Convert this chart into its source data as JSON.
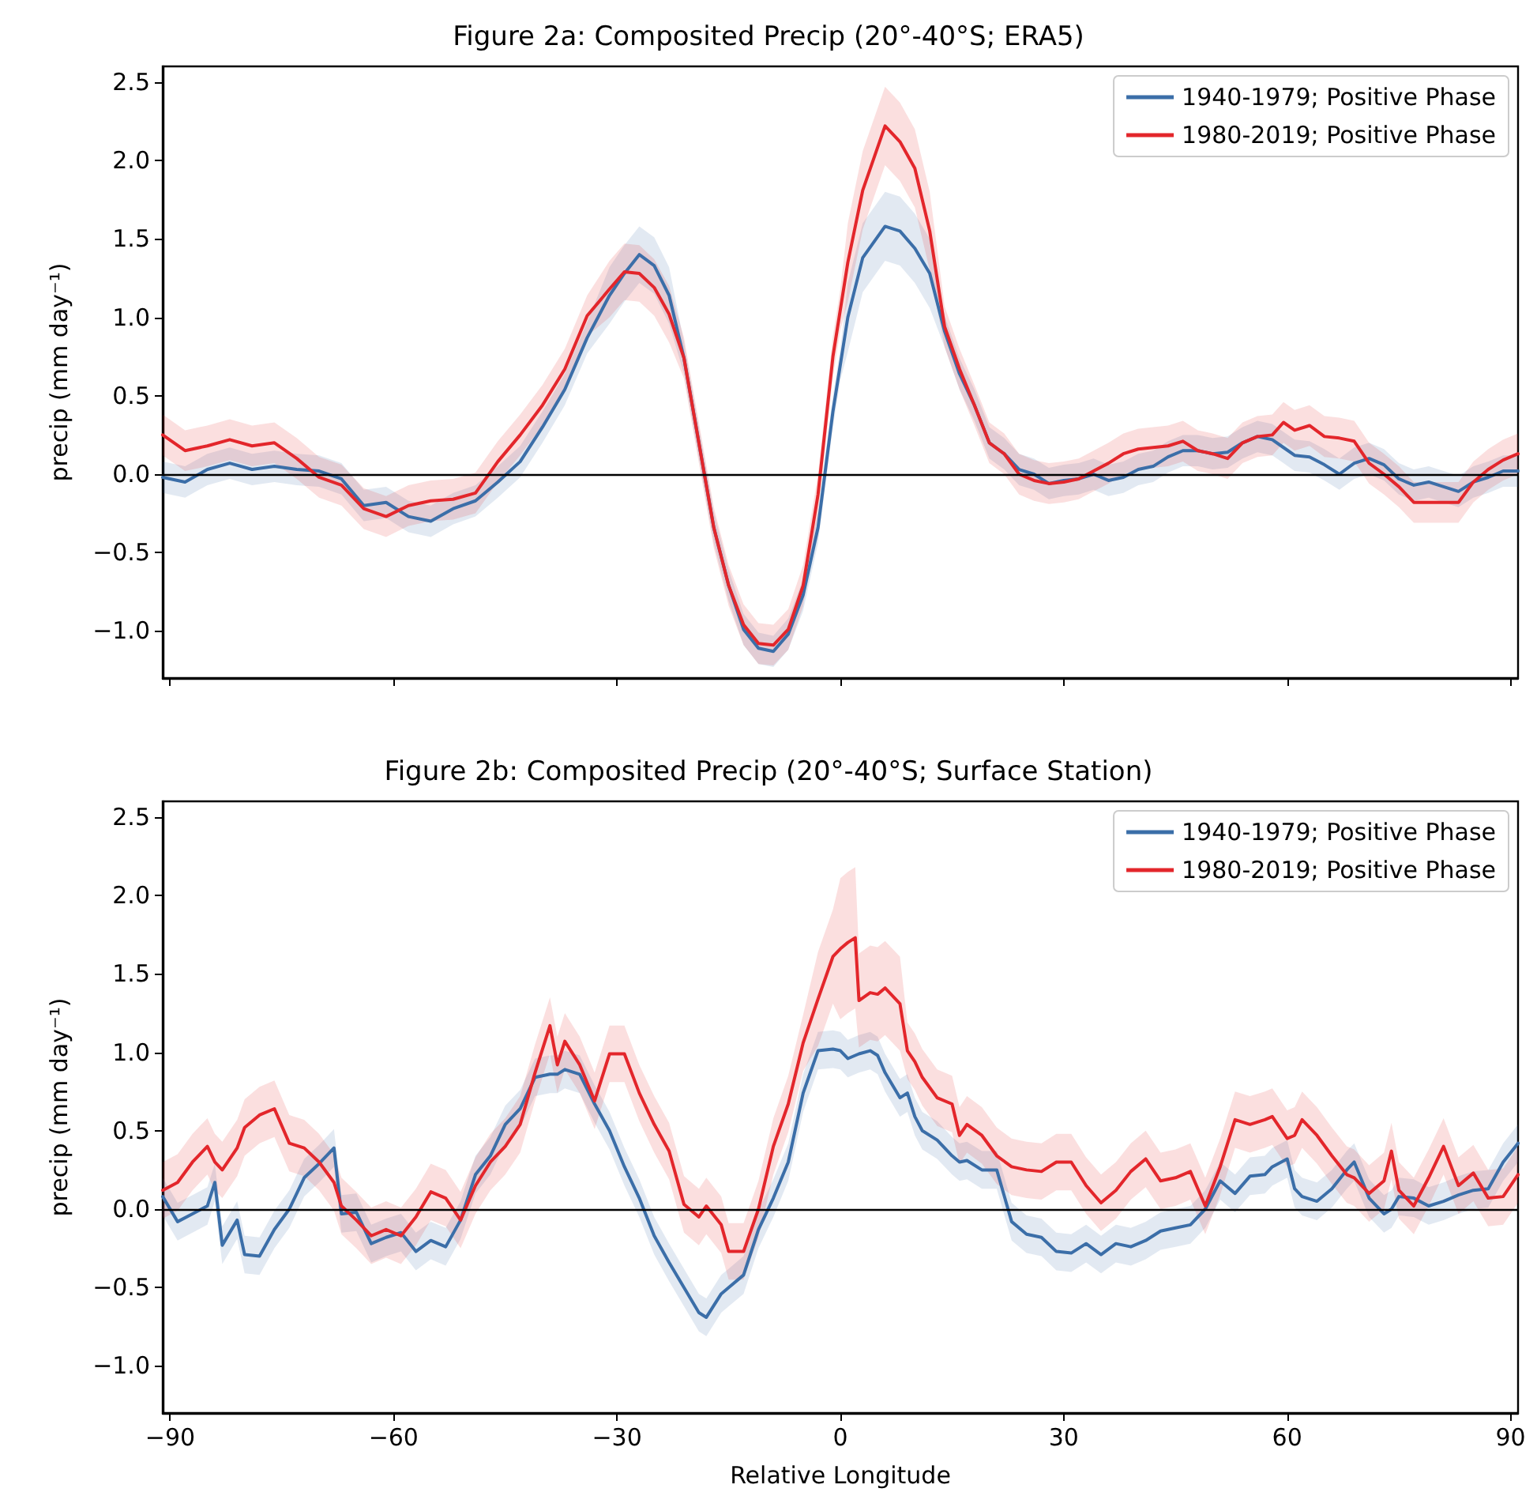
{
  "chart_data": [
    {
      "type": "line",
      "title": "Figure 2a: Composited Precip (20°-40°S; ERA5)",
      "ylabel": "precip (mm day⁻¹)",
      "xlim": [
        -91,
        91
      ],
      "xticks": [
        {
          "value": -90,
          "label": null
        },
        {
          "value": -60,
          "label": null
        },
        {
          "value": -30,
          "label": null
        },
        {
          "value": 0,
          "label": null
        },
        {
          "value": 30,
          "label": null
        },
        {
          "value": 60,
          "label": null
        },
        {
          "value": 90,
          "label": null
        }
      ],
      "ylim": [
        -1.3,
        2.6
      ],
      "yticks": [
        {
          "value": -1,
          "label": "−1.0"
        },
        {
          "value": -0.5,
          "label": "−0.5"
        },
        {
          "value": 0,
          "label": "0.0"
        },
        {
          "value": 0.5,
          "label": "0.5"
        },
        {
          "value": 1,
          "label": "1.0"
        },
        {
          "value": 1.5,
          "label": "1.5"
        },
        {
          "value": 2,
          "label": "2.0"
        },
        {
          "value": 2.5,
          "label": "2.5"
        }
      ],
      "tick_labels": "y",
      "legend": "top right",
      "grid": false,
      "marker": "none",
      "line_style": "solid",
      "ref_lines": [
        {
          "axis": "y",
          "value": 0,
          "color": "#000000"
        }
      ],
      "x": [
        -91,
        -88,
        -85,
        -82,
        -79,
        -76,
        -73,
        -70,
        -67,
        -64,
        -61,
        -58,
        -55,
        -52,
        -49,
        -46,
        -43,
        -40,
        -37,
        -34,
        -31,
        -29,
        -27,
        -25,
        -23,
        -21,
        -19,
        -17,
        -15,
        -13,
        -11,
        -9,
        -7,
        -5,
        -3,
        -1,
        0,
        1,
        3,
        6,
        8,
        10,
        12,
        14,
        16,
        18,
        20,
        22,
        24,
        26,
        28,
        30,
        32,
        34,
        36,
        38,
        40,
        42,
        44,
        46,
        48,
        50,
        52,
        54,
        56,
        58,
        59.5,
        61,
        63,
        65,
        67,
        69,
        71,
        73,
        75,
        77,
        79,
        81,
        83,
        85,
        87,
        89,
        91
      ],
      "series": [
        {
          "name": "1940-1979; Positive Phase",
          "color": "#3b6ea8",
          "values": [
            -0.02,
            -0.05,
            0.03,
            0.07,
            0.03,
            0.05,
            0.03,
            0.02,
            -0.03,
            -0.2,
            -0.18,
            -0.27,
            -0.3,
            -0.22,
            -0.17,
            -0.05,
            0.08,
            0.3,
            0.54,
            0.87,
            1.14,
            1.28,
            1.4,
            1.33,
            1.14,
            0.74,
            0.2,
            -0.34,
            -0.71,
            -0.99,
            -1.11,
            -1.13,
            -1.02,
            -0.77,
            -0.34,
            0.4,
            0.7,
            1.0,
            1.38,
            1.58,
            1.55,
            1.44,
            1.28,
            0.91,
            0.64,
            0.44,
            0.2,
            0.13,
            0.03,
            0,
            -0.06,
            -0.04,
            -0.03,
            0,
            -0.04,
            -0.02,
            0.03,
            0.05,
            0.11,
            0.15,
            0.15,
            0.13,
            0.14,
            0.2,
            0.24,
            0.22,
            0.17,
            0.12,
            0.11,
            0.06,
            0,
            0.07,
            0.1,
            0.06,
            -0.03,
            -0.07,
            -0.05,
            -0.08,
            -0.11,
            -0.05,
            -0.02,
            0.02,
            0.02
          ],
          "lower": [
            -0.12,
            -0.15,
            -0.07,
            -0.03,
            -0.07,
            -0.05,
            -0.07,
            -0.08,
            -0.13,
            -0.3,
            -0.28,
            -0.37,
            -0.4,
            -0.32,
            -0.27,
            -0.15,
            -0.02,
            0.2,
            0.44,
            0.77,
            0.96,
            1.1,
            1.22,
            1.15,
            0.96,
            0.64,
            0.1,
            -0.44,
            -0.81,
            -1.09,
            -1.21,
            -1.23,
            -1.12,
            -0.87,
            -0.44,
            0.3,
            0.6,
            0.78,
            1.16,
            1.36,
            1.33,
            1.22,
            1.06,
            0.81,
            0.54,
            0.34,
            0.1,
            0.03,
            -0.07,
            -0.1,
            -0.16,
            -0.14,
            -0.13,
            -0.1,
            -0.14,
            -0.12,
            -0.07,
            -0.05,
            0.01,
            0.05,
            0.05,
            0.03,
            0.04,
            0.1,
            0.14,
            0.12,
            0.07,
            0.02,
            0.01,
            -0.04,
            -0.1,
            -0.03,
            0,
            -0.04,
            -0.13,
            -0.17,
            -0.15,
            -0.18,
            -0.21,
            -0.15,
            -0.12,
            -0.08,
            -0.08
          ],
          "upper": [
            0.08,
            0.05,
            0.13,
            0.17,
            0.13,
            0.15,
            0.13,
            0.12,
            0.07,
            -0.1,
            -0.08,
            -0.17,
            -0.2,
            -0.12,
            -0.07,
            0.05,
            0.18,
            0.4,
            0.64,
            0.97,
            1.32,
            1.46,
            1.58,
            1.51,
            1.32,
            0.84,
            0.3,
            -0.24,
            -0.61,
            -0.89,
            -1.01,
            -1.03,
            -0.92,
            -0.67,
            -0.24,
            0.5,
            0.8,
            1.22,
            1.6,
            1.8,
            1.77,
            1.66,
            1.5,
            1.01,
            0.74,
            0.54,
            0.3,
            0.23,
            0.13,
            0.1,
            0.04,
            0.06,
            0.07,
            0.1,
            0.06,
            0.08,
            0.13,
            0.15,
            0.21,
            0.25,
            0.25,
            0.23,
            0.24,
            0.3,
            0.34,
            0.32,
            0.27,
            0.22,
            0.21,
            0.16,
            0.1,
            0.17,
            0.2,
            0.16,
            0.07,
            0.03,
            0.05,
            0.02,
            -0.01,
            0.05,
            0.08,
            0.12,
            0.12
          ]
        },
        {
          "name": "1980-2019; Positive Phase",
          "color": "#e3262b",
          "values": [
            0.25,
            0.15,
            0.18,
            0.22,
            0.18,
            0.2,
            0.1,
            -0.02,
            -0.07,
            -0.22,
            -0.27,
            -0.2,
            -0.17,
            -0.16,
            -0.12,
            0.08,
            0.25,
            0.44,
            0.67,
            1.01,
            1.18,
            1.29,
            1.28,
            1.19,
            1.02,
            0.74,
            0.2,
            -0.34,
            -0.71,
            -0.96,
            -1.08,
            -1.09,
            -0.99,
            -0.71,
            -0.13,
            0.75,
            1.05,
            1.35,
            1.81,
            2.22,
            2.12,
            1.95,
            1.55,
            0.94,
            0.67,
            0.44,
            0.2,
            0.13,
            0,
            -0.04,
            -0.06,
            -0.05,
            -0.03,
            0.02,
            0.07,
            0.13,
            0.16,
            0.17,
            0.18,
            0.21,
            0.15,
            0.13,
            0.1,
            0.2,
            0.24,
            0.25,
            0.33,
            0.28,
            0.31,
            0.24,
            0.23,
            0.21,
            0.07,
            0,
            -0.08,
            -0.18,
            -0.18,
            -0.18,
            -0.18,
            -0.05,
            0.03,
            0.09,
            0.13
          ],
          "lower": [
            0.12,
            0.02,
            0.05,
            0.09,
            0.05,
            0.07,
            -0.03,
            -0.15,
            -0.2,
            -0.35,
            -0.4,
            -0.33,
            -0.3,
            -0.29,
            -0.25,
            -0.05,
            0.12,
            0.31,
            0.54,
            0.88,
            1.0,
            1.11,
            1.1,
            1.01,
            0.84,
            0.61,
            0.07,
            -0.47,
            -0.84,
            -1.09,
            -1.21,
            -1.22,
            -1.12,
            -0.84,
            -0.26,
            0.62,
            0.92,
            1.1,
            1.56,
            1.97,
            1.87,
            1.7,
            1.3,
            0.81,
            0.54,
            0.31,
            0.07,
            0,
            -0.13,
            -0.17,
            -0.19,
            -0.18,
            -0.16,
            -0.11,
            -0.06,
            0,
            0.03,
            0.04,
            0.05,
            0.08,
            0.02,
            0,
            -0.03,
            0.07,
            0.11,
            0.12,
            0.2,
            0.15,
            0.18,
            0.11,
            0.1,
            0.08,
            -0.06,
            -0.13,
            -0.21,
            -0.31,
            -0.31,
            -0.31,
            -0.31,
            -0.18,
            -0.1,
            -0.04,
            0
          ],
          "upper": [
            0.38,
            0.28,
            0.31,
            0.35,
            0.31,
            0.33,
            0.23,
            0.11,
            0.06,
            -0.09,
            -0.14,
            -0.07,
            -0.04,
            -0.03,
            0.01,
            0.21,
            0.38,
            0.57,
            0.8,
            1.14,
            1.36,
            1.47,
            1.46,
            1.37,
            1.2,
            0.87,
            0.33,
            -0.21,
            -0.58,
            -0.83,
            -0.95,
            -0.96,
            -0.86,
            -0.58,
            0,
            0.88,
            1.18,
            1.6,
            2.06,
            2.47,
            2.37,
            2.2,
            1.8,
            1.07,
            0.8,
            0.57,
            0.33,
            0.26,
            0.13,
            0.09,
            0.07,
            0.08,
            0.1,
            0.15,
            0.2,
            0.26,
            0.29,
            0.3,
            0.31,
            0.34,
            0.28,
            0.26,
            0.23,
            0.33,
            0.37,
            0.38,
            0.46,
            0.41,
            0.44,
            0.37,
            0.36,
            0.34,
            0.2,
            0.13,
            0.05,
            -0.05,
            -0.05,
            -0.05,
            -0.05,
            0.08,
            0.16,
            0.22,
            0.26
          ]
        }
      ]
    },
    {
      "type": "line",
      "title": "Figure 2b: Composited Precip (20°-40°S; Surface Station)",
      "xlabel": "Relative Longitude",
      "ylabel": "precip (mm day⁻¹)",
      "xlim": [
        -91,
        91
      ],
      "xticks": [
        {
          "value": -90,
          "label": "−90"
        },
        {
          "value": -60,
          "label": "−60"
        },
        {
          "value": -30,
          "label": "−30"
        },
        {
          "value": 0,
          "label": "0"
        },
        {
          "value": 30,
          "label": "30"
        },
        {
          "value": 60,
          "label": "60"
        },
        {
          "value": 90,
          "label": "90"
        }
      ],
      "ylim": [
        -1.3,
        2.6
      ],
      "yticks": [
        {
          "value": -1,
          "label": "−1.0"
        },
        {
          "value": -0.5,
          "label": "−0.5"
        },
        {
          "value": 0,
          "label": "0.0"
        },
        {
          "value": 0.5,
          "label": "0.5"
        },
        {
          "value": 1,
          "label": "1.0"
        },
        {
          "value": 1.5,
          "label": "1.5"
        },
        {
          "value": 2,
          "label": "2.0"
        },
        {
          "value": 2.5,
          "label": "2.5"
        }
      ],
      "legend": "top right",
      "grid": false,
      "marker": "none",
      "line_style": "solid",
      "ref_lines": [
        {
          "axis": "y",
          "value": 0,
          "color": "#000000"
        }
      ],
      "x": [
        -91,
        -89,
        -87,
        -85,
        -84,
        -83,
        -81,
        -80,
        -78,
        -76,
        -74,
        -72,
        -70,
        -68,
        -67,
        -65,
        -63,
        -61,
        -59,
        -57,
        -55,
        -53,
        -51,
        -49,
        -47,
        -45,
        -43,
        -41,
        -39,
        -38,
        -37,
        -35,
        -33,
        -31,
        -29,
        -27,
        -25,
        -23,
        -21,
        -19,
        -18,
        -16,
        -15,
        -13,
        -11,
        -9,
        -7,
        -5,
        -3,
        -1,
        0,
        1,
        2,
        2.5,
        4,
        5,
        6,
        8,
        9,
        10,
        11,
        13,
        15,
        16,
        17,
        19,
        21,
        23,
        25,
        27,
        29,
        31,
        33,
        35,
        37,
        39,
        41,
        43,
        45,
        47,
        49,
        51,
        53,
        55,
        57,
        58,
        60,
        61,
        62,
        64,
        66,
        68,
        69,
        71,
        73,
        74,
        75,
        77,
        79,
        81,
        83,
        85,
        87,
        89,
        91
      ],
      "series": [
        {
          "name": "1940-1979; Positive Phase",
          "color": "#3b6ea8",
          "values": [
            0.08,
            -0.08,
            -0.03,
            0.02,
            0.17,
            -0.23,
            -0.07,
            -0.29,
            -0.3,
            -0.13,
            0,
            0.2,
            0.29,
            0.39,
            -0.03,
            -0.02,
            -0.22,
            -0.18,
            -0.15,
            -0.27,
            -0.2,
            -0.24,
            -0.07,
            0.22,
            0.34,
            0.54,
            0.64,
            0.84,
            0.86,
            0.86,
            0.89,
            0.86,
            0.67,
            0.5,
            0.27,
            0.07,
            -0.17,
            -0.34,
            -0.5,
            -0.66,
            -0.69,
            -0.54,
            -0.5,
            -0.42,
            -0.13,
            0.07,
            0.3,
            0.74,
            1.01,
            1.02,
            1.01,
            0.96,
            0.98,
            0.99,
            1.01,
            0.98,
            0.87,
            0.71,
            0.74,
            0.59,
            0.5,
            0.44,
            0.34,
            0.3,
            0.31,
            0.25,
            0.25,
            -0.08,
            -0.16,
            -0.18,
            -0.27,
            -0.28,
            -0.22,
            -0.29,
            -0.22,
            -0.24,
            -0.2,
            -0.14,
            -0.12,
            -0.1,
            0,
            0.18,
            0.1,
            0.21,
            0.22,
            0.27,
            0.32,
            0.13,
            0.08,
            0.05,
            0.13,
            0.25,
            0.3,
            0.07,
            -0.03,
            0,
            0.08,
            0.07,
            0.02,
            0.05,
            0.09,
            0.12,
            0.13,
            0.3,
            0.42
          ],
          "lower": [
            -0.04,
            -0.2,
            -0.15,
            -0.1,
            0.05,
            -0.35,
            -0.19,
            -0.41,
            -0.42,
            -0.25,
            -0.12,
            0.08,
            0.17,
            0.27,
            -0.15,
            -0.14,
            -0.34,
            -0.3,
            -0.27,
            -0.39,
            -0.32,
            -0.36,
            -0.19,
            0.1,
            0.22,
            0.42,
            0.52,
            0.72,
            0.74,
            0.74,
            0.77,
            0.74,
            0.55,
            0.38,
            0.15,
            -0.05,
            -0.29,
            -0.46,
            -0.62,
            -0.78,
            -0.81,
            -0.66,
            -0.62,
            -0.54,
            -0.25,
            -0.05,
            0.18,
            0.62,
            0.89,
            0.9,
            0.89,
            0.84,
            0.86,
            0.87,
            0.89,
            0.86,
            0.75,
            0.59,
            0.62,
            0.47,
            0.38,
            0.32,
            0.22,
            0.18,
            0.19,
            0.13,
            0.13,
            -0.2,
            -0.28,
            -0.3,
            -0.39,
            -0.4,
            -0.34,
            -0.41,
            -0.34,
            -0.36,
            -0.32,
            -0.26,
            -0.24,
            -0.22,
            -0.12,
            0.06,
            -0.02,
            0.09,
            0.1,
            0.15,
            0.2,
            0.01,
            -0.04,
            -0.07,
            0.01,
            0.13,
            0.18,
            -0.05,
            -0.15,
            -0.12,
            -0.04,
            -0.05,
            -0.1,
            -0.07,
            -0.03,
            0,
            0.01,
            0.18,
            0.3
          ],
          "upper": [
            0.2,
            0.04,
            0.09,
            0.14,
            0.29,
            -0.11,
            0.05,
            -0.17,
            -0.18,
            -0.01,
            0.12,
            0.32,
            0.41,
            0.51,
            0.09,
            0.1,
            -0.1,
            -0.06,
            -0.03,
            -0.15,
            -0.08,
            -0.12,
            0.05,
            0.34,
            0.46,
            0.66,
            0.76,
            0.96,
            0.98,
            0.98,
            1.01,
            0.98,
            0.79,
            0.62,
            0.39,
            0.19,
            -0.05,
            -0.22,
            -0.38,
            -0.54,
            -0.57,
            -0.42,
            -0.38,
            -0.3,
            -0.01,
            0.19,
            0.42,
            0.86,
            1.13,
            1.14,
            1.13,
            1.08,
            1.1,
            1.11,
            1.13,
            1.1,
            0.99,
            0.83,
            0.86,
            0.71,
            0.62,
            0.56,
            0.46,
            0.42,
            0.43,
            0.37,
            0.37,
            0.04,
            -0.04,
            -0.06,
            -0.15,
            -0.16,
            -0.1,
            -0.17,
            -0.1,
            -0.12,
            -0.08,
            -0.02,
            0,
            0.02,
            0.12,
            0.3,
            0.22,
            0.33,
            0.34,
            0.39,
            0.44,
            0.25,
            0.2,
            0.17,
            0.25,
            0.37,
            0.42,
            0.19,
            0.09,
            0.12,
            0.2,
            0.19,
            0.14,
            0.17,
            0.21,
            0.24,
            0.25,
            0.42,
            0.54
          ]
        },
        {
          "name": "1980-2019; Positive Phase",
          "color": "#e3262b",
          "values": [
            0.12,
            0.17,
            0.3,
            0.4,
            0.3,
            0.25,
            0.39,
            0.52,
            0.6,
            0.64,
            0.42,
            0.39,
            0.3,
            0.17,
            0.02,
            -0.07,
            -0.17,
            -0.13,
            -0.17,
            -0.05,
            0.11,
            0.07,
            -0.07,
            0.15,
            0.3,
            0.4,
            0.54,
            0.87,
            1.17,
            0.92,
            1.07,
            0.92,
            0.69,
            0.99,
            0.99,
            0.74,
            0.54,
            0.37,
            0.03,
            -0.05,
            0.02,
            -0.1,
            -0.27,
            -0.27,
            0,
            0.4,
            0.67,
            1.06,
            1.34,
            1.61,
            1.66,
            1.7,
            1.73,
            1.33,
            1.38,
            1.37,
            1.41,
            1.31,
            1.01,
            0.94,
            0.84,
            0.71,
            0.67,
            0.47,
            0.54,
            0.47,
            0.34,
            0.27,
            0.25,
            0.24,
            0.3,
            0.3,
            0.15,
            0.04,
            0.12,
            0.24,
            0.32,
            0.18,
            0.2,
            0.24,
            0.02,
            0.27,
            0.57,
            0.54,
            0.57,
            0.59,
            0.45,
            0.47,
            0.57,
            0.47,
            0.34,
            0.22,
            0.2,
            0.1,
            0.18,
            0.37,
            0.12,
            0.02,
            0.2,
            0.4,
            0.15,
            0.23,
            0.07,
            0.08,
            0.22
          ],
          "lower": [
            -0.06,
            -0.01,
            0.12,
            0.22,
            0.12,
            0.07,
            0.21,
            0.34,
            0.42,
            0.46,
            0.24,
            0.21,
            0.12,
            -0.01,
            -0.16,
            -0.25,
            -0.35,
            -0.31,
            -0.35,
            -0.23,
            -0.07,
            -0.11,
            -0.25,
            -0.03,
            0.12,
            0.22,
            0.36,
            0.69,
            0.99,
            0.74,
            0.89,
            0.74,
            0.51,
            0.81,
            0.81,
            0.56,
            0.36,
            0.19,
            -0.15,
            -0.23,
            -0.16,
            -0.28,
            -0.45,
            -0.45,
            -0.18,
            0.22,
            0.49,
            0.88,
            1.04,
            1.31,
            1.21,
            1.25,
            1.28,
            1.03,
            1.08,
            1.07,
            1.11,
            1.01,
            0.83,
            0.76,
            0.66,
            0.53,
            0.49,
            0.29,
            0.36,
            0.29,
            0.16,
            0.09,
            0.07,
            0.06,
            0.12,
            0.12,
            -0.03,
            -0.14,
            -0.06,
            0.06,
            0.14,
            0,
            0.02,
            0.06,
            -0.16,
            0.09,
            0.39,
            0.36,
            0.39,
            0.41,
            0.27,
            0.29,
            0.39,
            0.29,
            0.16,
            0.04,
            0.02,
            -0.08,
            0,
            0.19,
            -0.06,
            -0.16,
            0.02,
            0.22,
            -0.03,
            0.05,
            -0.11,
            -0.1,
            0.04
          ],
          "upper": [
            0.3,
            0.35,
            0.48,
            0.58,
            0.48,
            0.43,
            0.57,
            0.7,
            0.78,
            0.82,
            0.6,
            0.57,
            0.48,
            0.35,
            0.2,
            0.11,
            0.01,
            0.05,
            0.01,
            0.13,
            0.29,
            0.25,
            0.11,
            0.33,
            0.48,
            0.58,
            0.72,
            1.05,
            1.35,
            1.1,
            1.25,
            1.1,
            0.87,
            1.17,
            1.17,
            0.92,
            0.72,
            0.55,
            0.21,
            0.13,
            0.2,
            0.08,
            -0.09,
            -0.09,
            0.18,
            0.58,
            0.85,
            1.24,
            1.64,
            1.91,
            2.11,
            2.15,
            2.18,
            1.63,
            1.68,
            1.67,
            1.71,
            1.61,
            1.19,
            1.12,
            1.02,
            0.89,
            0.85,
            0.65,
            0.72,
            0.65,
            0.52,
            0.45,
            0.43,
            0.42,
            0.48,
            0.48,
            0.33,
            0.22,
            0.3,
            0.42,
            0.5,
            0.36,
            0.38,
            0.42,
            0.2,
            0.45,
            0.75,
            0.72,
            0.75,
            0.77,
            0.63,
            0.65,
            0.75,
            0.65,
            0.52,
            0.4,
            0.38,
            0.28,
            0.36,
            0.55,
            0.3,
            0.2,
            0.38,
            0.58,
            0.33,
            0.41,
            0.25,
            0.26,
            0.4
          ]
        }
      ]
    }
  ]
}
